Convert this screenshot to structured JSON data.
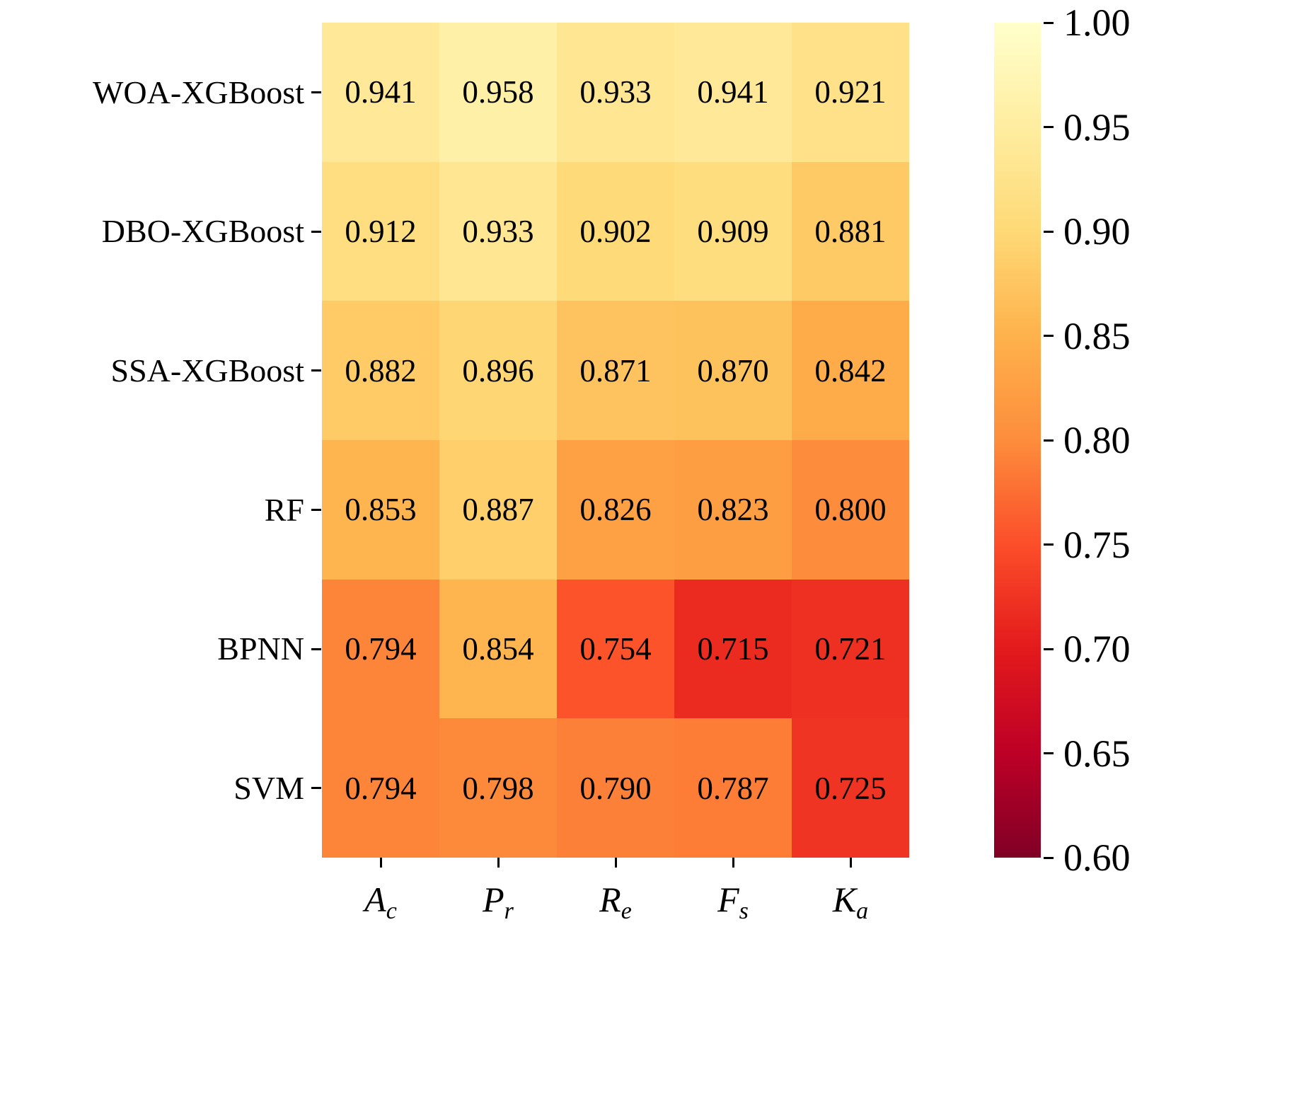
{
  "figure": {
    "background": "#ffffff",
    "text_color": "#000000"
  },
  "chart_data": {
    "type": "heatmap",
    "title": "",
    "rows": [
      "WOA-XGBoost",
      "DBO-XGBoost",
      "SSA-XGBoost",
      "RF",
      "BPNN",
      "SVM"
    ],
    "columns": [
      {
        "main": "A",
        "sub": "c"
      },
      {
        "main": "P",
        "sub": "r"
      },
      {
        "main": "R",
        "sub": "e"
      },
      {
        "main": "F",
        "sub": "s"
      },
      {
        "main": "K",
        "sub": "a"
      }
    ],
    "values": [
      [
        "0.941",
        "0.958",
        "0.933",
        "0.941",
        "0.921"
      ],
      [
        "0.912",
        "0.933",
        "0.902",
        "0.909",
        "0.881"
      ],
      [
        "0.882",
        "0.896",
        "0.871",
        "0.870",
        "0.842"
      ],
      [
        "0.853",
        "0.887",
        "0.826",
        "0.823",
        "0.800"
      ],
      [
        "0.794",
        "0.854",
        "0.754",
        "0.715",
        "0.721"
      ],
      [
        "0.794",
        "0.798",
        "0.790",
        "0.787",
        "0.725"
      ]
    ],
    "vmin": 0.6,
    "vmax": 1.0,
    "colorbar_ticks": [
      "1.00",
      "0.95",
      "0.90",
      "0.85",
      "0.80",
      "0.75",
      "0.70",
      "0.65",
      "0.60"
    ],
    "colormap_name": "YlOrRd-reversed",
    "colormap_stops": [
      "#ffffcc",
      "#ffeda0",
      "#fed976",
      "#feb24c",
      "#fd8d3c",
      "#fc4e2a",
      "#e31a1c",
      "#bd0026",
      "#800026"
    ],
    "legend_position": "right-colorbar",
    "grid": false
  }
}
